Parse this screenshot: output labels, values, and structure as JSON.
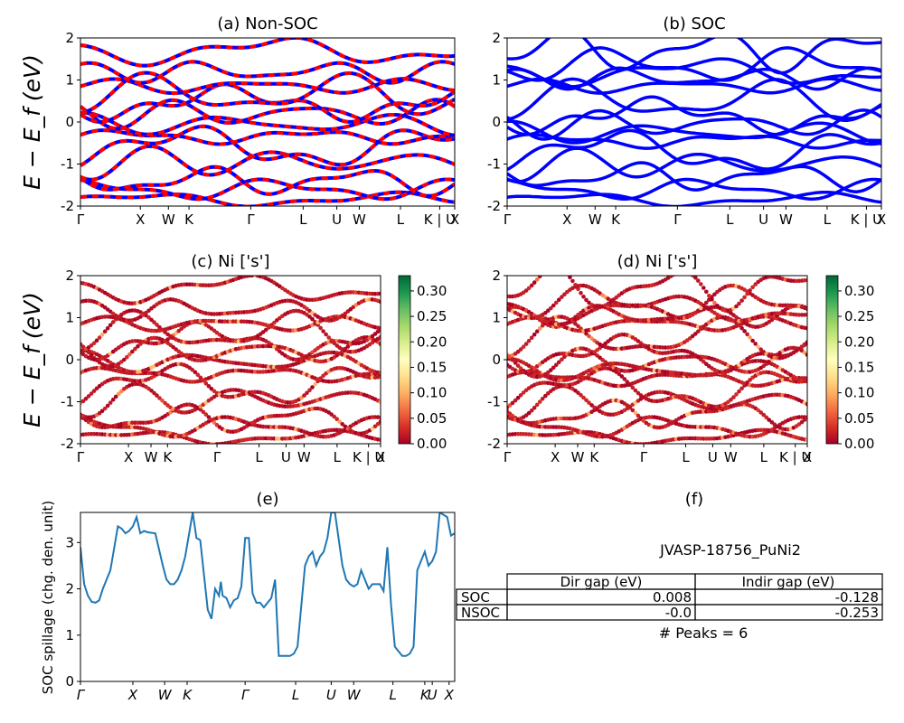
{
  "figure": {
    "ylabel_band": "E − E_f (eV)",
    "material": "JVASP-18756_PuNi2",
    "peaks_text": "# Peaks = 6",
    "kpath_labels": [
      "Γ",
      "X",
      "W",
      "K",
      "Γ",
      "L",
      "U",
      "W",
      "L",
      "K | U",
      "X"
    ],
    "kpath_labels_e": [
      "Γ",
      "X",
      "W",
      "K",
      "Γ",
      "L",
      "U",
      "W",
      "L",
      "K",
      "U",
      "X"
    ]
  },
  "colors": {
    "nonsoc_line_a": "#ff0000",
    "nonsoc_line_b": "#0000ff",
    "soc_line": "#0000ff",
    "spillage_line": "#1f77b4",
    "colormap": [
      "#a50026",
      "#d73027",
      "#f46d43",
      "#fdae61",
      "#fee08b",
      "#ffffbf",
      "#d9ef8b",
      "#a6d96a",
      "#66bd63",
      "#1a9850",
      "#006837"
    ]
  },
  "chart_data": [
    {
      "panel": "a",
      "type": "line",
      "title": "(a) Non-SOC",
      "ylabel": "E − E_f (eV)",
      "ylim": [
        -2,
        2
      ],
      "yticks": [
        -2,
        -1,
        0,
        1,
        2
      ],
      "xticks": [
        "Γ",
        "X",
        "W",
        "K",
        "Γ",
        "L",
        "U",
        "W",
        "L",
        "K | U",
        "X"
      ],
      "bands_approx": [
        -1.85,
        -1.6,
        -1.4,
        -0.95,
        -0.6,
        -0.35,
        -0.05,
        0.2,
        0.45,
        0.65,
        0.85,
        1.2,
        1.7
      ]
    },
    {
      "panel": "b",
      "type": "line",
      "title": "(b) SOC",
      "ylim": [
        -2,
        2
      ],
      "yticks": [
        -2,
        -1,
        0,
        1,
        2
      ],
      "xticks": [
        "Γ",
        "X",
        "W",
        "K",
        "Γ",
        "L",
        "U",
        "W",
        "L",
        "K | U",
        "X"
      ],
      "bands_approx": [
        -1.85,
        -1.6,
        -1.3,
        -1.0,
        -0.7,
        -0.45,
        -0.25,
        -0.05,
        0.15,
        0.5,
        0.85,
        1.05,
        1.2,
        1.35,
        1.7
      ]
    },
    {
      "panel": "c",
      "type": "scatter",
      "title": "(c)  Ni ['s']",
      "ylabel": "E − E_f (eV)",
      "ylim": [
        -2,
        2
      ],
      "yticks": [
        -2,
        -1,
        0,
        1,
        2
      ],
      "xticks": [
        "Γ",
        "X",
        "W",
        "K",
        "Γ",
        "L",
        "U",
        "W",
        "L",
        "K | U",
        "X"
      ],
      "colorbar": {
        "min": 0.0,
        "max": 0.33,
        "ticks": [
          "0.00",
          "0.05",
          "0.10",
          "0.15",
          "0.20",
          "0.25",
          "0.30"
        ]
      },
      "bands_approx": [
        -1.85,
        -1.6,
        -1.4,
        -0.95,
        -0.6,
        -0.35,
        -0.05,
        0.2,
        0.45,
        0.65,
        0.85,
        1.2,
        1.7
      ]
    },
    {
      "panel": "d",
      "type": "scatter",
      "title": "(d) Ni ['s']",
      "ylim": [
        -2,
        2
      ],
      "yticks": [
        -2,
        -1,
        0,
        1,
        2
      ],
      "xticks": [
        "Γ",
        "X",
        "W",
        "K",
        "Γ",
        "L",
        "U",
        "W",
        "L",
        "K | U",
        "X"
      ],
      "colorbar": {
        "min": 0.0,
        "max": 0.33,
        "ticks": [
          "0.00",
          "0.05",
          "0.10",
          "0.15",
          "0.20",
          "0.25",
          "0.30"
        ]
      },
      "bands_approx": [
        -1.85,
        -1.6,
        -1.3,
        -1.0,
        -0.7,
        -0.45,
        -0.25,
        -0.05,
        0.15,
        0.5,
        0.85,
        1.05,
        1.2,
        1.35,
        1.7
      ]
    },
    {
      "panel": "e",
      "type": "line",
      "title": "(e)",
      "ylabel": "SOC spillage (chg. den. unit)",
      "ylim": [
        0,
        3.65
      ],
      "yticks": [
        0,
        1,
        2,
        3
      ],
      "xticks": [
        "Γ",
        "X",
        "W",
        "K",
        "Γ",
        "L",
        "U",
        "W",
        "L",
        "K",
        "U",
        "X"
      ],
      "x": [
        0,
        0.01,
        0.02,
        0.03,
        0.04,
        0.05,
        0.06,
        0.08,
        0.1,
        0.11,
        0.12,
        0.13,
        0.14,
        0.15,
        0.16,
        0.17,
        0.18,
        0.2,
        0.22,
        0.23,
        0.24,
        0.25,
        0.26,
        0.27,
        0.28,
        0.3,
        0.31,
        0.32,
        0.34,
        0.35,
        0.36,
        0.37,
        0.375,
        0.38,
        0.39,
        0.4,
        0.41,
        0.42,
        0.43,
        0.44,
        0.45,
        0.46,
        0.47,
        0.48,
        0.49,
        0.5,
        0.51,
        0.52,
        0.53,
        0.54,
        0.55,
        0.56,
        0.57,
        0.58,
        0.6,
        0.61,
        0.62,
        0.63,
        0.64,
        0.65,
        0.66,
        0.67,
        0.68,
        0.7,
        0.71,
        0.72,
        0.73,
        0.74,
        0.75,
        0.76,
        0.77,
        0.78,
        0.8,
        0.81,
        0.82,
        0.83,
        0.84,
        0.85,
        0.86,
        0.87,
        0.88,
        0.89,
        0.9,
        0.91,
        0.92,
        0.93,
        0.94,
        0.95,
        0.96,
        0.97,
        0.98,
        0.99,
        1.0
      ],
      "y": [
        2.9,
        2.1,
        1.85,
        1.72,
        1.7,
        1.75,
        2.0,
        2.4,
        3.35,
        3.3,
        3.2,
        3.25,
        3.35,
        3.55,
        3.2,
        3.25,
        3.22,
        3.2,
        2.5,
        2.2,
        2.1,
        2.1,
        2.2,
        2.4,
        2.7,
        3.65,
        3.1,
        3.05,
        1.55,
        1.35,
        2.0,
        1.85,
        2.15,
        1.85,
        1.8,
        1.6,
        1.75,
        1.8,
        2.05,
        3.1,
        3.1,
        1.9,
        1.7,
        1.7,
        1.6,
        1.7,
        1.8,
        2.2,
        0.55,
        0.55,
        0.55,
        0.55,
        0.6,
        0.75,
        2.5,
        2.7,
        2.8,
        2.5,
        2.7,
        2.8,
        3.1,
        3.65,
        3.65,
        2.5,
        2.2,
        2.1,
        2.05,
        2.1,
        2.4,
        2.2,
        2.0,
        2.1,
        2.1,
        1.95,
        2.9,
        1.65,
        0.75,
        0.65,
        0.55,
        0.55,
        0.6,
        0.75,
        2.4,
        2.6,
        2.8,
        2.5,
        2.6,
        2.8,
        3.65,
        3.6,
        3.55,
        3.15,
        3.2
      ]
    },
    {
      "panel": "f",
      "type": "table",
      "title": "(f)",
      "caption": "JVASP-18756_PuNi2",
      "columns": [
        "Dir gap (eV)",
        "Indir gap (eV)"
      ],
      "rows": [
        {
          "label": "SOC",
          "values": [
            "0.008",
            "-0.128"
          ]
        },
        {
          "label": "NSOC",
          "values": [
            "-0.0",
            "-0.253"
          ]
        }
      ],
      "note": "# Peaks = 6"
    }
  ]
}
